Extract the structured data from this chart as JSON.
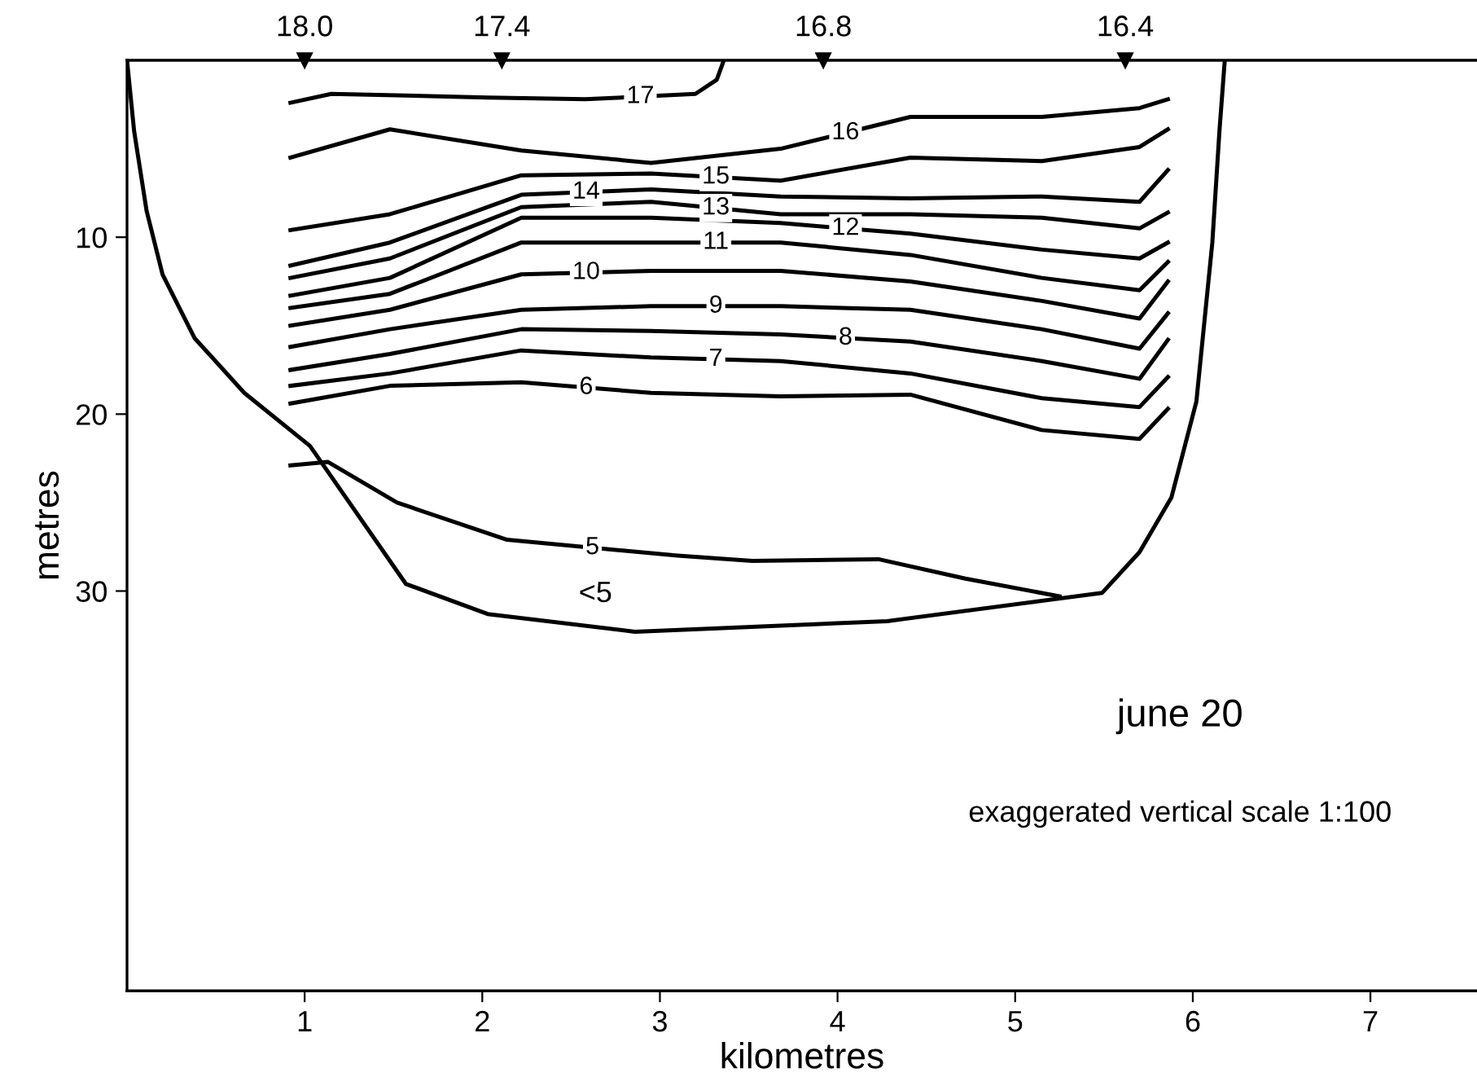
{
  "chart_data": {
    "type": "line",
    "xlabel": "kilometres",
    "ylabel": "metres",
    "xlim": [
      0,
      7.6
    ],
    "xticks": [
      1,
      2,
      3,
      4,
      5,
      6,
      7
    ],
    "ylim": [
      52.6,
      0
    ],
    "yticks": [
      10,
      20,
      30
    ],
    "grid": false,
    "legend": false,
    "marker": "none",
    "line_style": "solid",
    "series": [
      {
        "color": "#000000",
        "x": [
          0,
          0.04,
          0.11,
          0.2,
          0.38,
          0.66,
          1.03,
          1.57,
          2.03,
          2.86,
          4.28,
          5.49,
          5.7,
          5.88,
          6.02,
          6.11,
          6.15,
          6.18
        ],
        "values": [
          0,
          4.0,
          8.5,
          12.1,
          15.7,
          18.8,
          21.8,
          29.6,
          31.3,
          32.3,
          31.7,
          30.1,
          27.8,
          24.7,
          19.3,
          10.3,
          4.0,
          0
        ]
      },
      {
        "name": "17",
        "color": "#000000",
        "x": [
          0.92,
          1.15,
          2.03,
          2.58,
          3.2,
          3.32,
          3.36
        ],
        "values": [
          2.4,
          1.9,
          2.1,
          2.2,
          1.9,
          1.1,
          0
        ]
      },
      {
        "name": "16",
        "color": "#000000",
        "x": [
          0.92,
          1.48,
          2.22,
          2.95,
          3.68,
          4.41,
          5.15,
          5.7,
          5.86
        ],
        "values": [
          5.5,
          3.9,
          5.1,
          5.8,
          5.0,
          3.2,
          3.2,
          2.7,
          2.2
        ]
      },
      {
        "name": "15",
        "color": "#000000",
        "x": [
          0.92,
          1.48,
          2.22,
          2.95,
          3.68,
          4.41,
          5.15,
          5.7,
          5.86
        ],
        "values": [
          9.6,
          8.7,
          6.5,
          6.4,
          6.8,
          5.5,
          5.7,
          4.9,
          3.9
        ]
      },
      {
        "name": "14",
        "color": "#000000",
        "x": [
          0.92,
          1.48,
          2.22,
          2.95,
          3.68,
          4.41,
          5.15,
          5.7,
          5.86
        ],
        "values": [
          11.6,
          10.3,
          7.6,
          7.3,
          7.7,
          7.8,
          7.7,
          8.0,
          6.2
        ]
      },
      {
        "name": "13",
        "color": "#000000",
        "x": [
          0.92,
          1.48,
          2.22,
          2.95,
          3.68,
          4.41,
          5.15,
          5.7,
          5.86
        ],
        "values": [
          12.3,
          11.2,
          8.3,
          8.0,
          8.7,
          8.7,
          8.9,
          9.5,
          8.6
        ]
      },
      {
        "name": "12",
        "color": "#000000",
        "x": [
          0.92,
          1.48,
          2.22,
          2.95,
          3.68,
          4.41,
          5.15,
          5.7,
          5.86
        ],
        "values": [
          13.3,
          12.3,
          8.9,
          8.9,
          9.2,
          9.8,
          10.7,
          11.2,
          10.3
        ]
      },
      {
        "name": "11",
        "color": "#000000",
        "x": [
          0.92,
          1.48,
          2.22,
          2.95,
          3.68,
          4.41,
          5.15,
          5.7,
          5.86
        ],
        "values": [
          14.0,
          13.2,
          10.3,
          10.3,
          10.3,
          11.0,
          12.3,
          13.0,
          11.4
        ]
      },
      {
        "name": "10",
        "color": "#000000",
        "x": [
          0.92,
          1.48,
          2.22,
          2.95,
          3.68,
          4.41,
          5.15,
          5.7,
          5.86
        ],
        "values": [
          15.0,
          14.1,
          12.1,
          11.9,
          11.9,
          12.5,
          13.6,
          14.6,
          12.5
        ]
      },
      {
        "name": "9",
        "color": "#000000",
        "x": [
          0.92,
          1.48,
          2.22,
          2.95,
          3.68,
          4.41,
          5.15,
          5.7,
          5.86
        ],
        "values": [
          16.2,
          15.2,
          14.1,
          13.9,
          13.9,
          14.1,
          15.2,
          16.3,
          14.3
        ]
      },
      {
        "name": "8",
        "color": "#000000",
        "x": [
          0.92,
          1.48,
          2.22,
          2.95,
          3.68,
          4.41,
          5.15,
          5.7,
          5.86
        ],
        "values": [
          17.5,
          16.6,
          15.2,
          15.3,
          15.5,
          15.9,
          17.0,
          18.0,
          15.8
        ]
      },
      {
        "name": "7",
        "color": "#000000",
        "x": [
          0.92,
          1.48,
          2.22,
          2.95,
          3.68,
          4.41,
          5.15,
          5.7,
          5.86
        ],
        "values": [
          18.4,
          17.7,
          16.4,
          16.8,
          17.0,
          17.7,
          19.1,
          19.6,
          17.9
        ]
      },
      {
        "name": "6",
        "color": "#000000",
        "x": [
          0.92,
          1.48,
          2.22,
          2.95,
          3.68,
          4.41,
          5.15,
          5.7,
          5.86
        ],
        "values": [
          19.4,
          18.4,
          18.2,
          18.8,
          19.0,
          18.9,
          20.9,
          21.4,
          19.7
        ]
      },
      {
        "name": "5",
        "color": "#000000",
        "x": [
          0.92,
          1.13,
          1.52,
          2.14,
          3.1,
          3.52,
          4.23,
          4.72,
          5.25
        ],
        "values": [
          22.9,
          22.7,
          25.0,
          27.1,
          28.0,
          28.3,
          28.2,
          29.3,
          30.3
        ]
      }
    ],
    "annotations": [
      {
        "text": "18.0",
        "x": 1.0,
        "y": 0
      },
      {
        "text": "17.4",
        "x": 2.11,
        "y": 0
      },
      {
        "text": "16.8",
        "x": 3.92,
        "y": 0
      },
      {
        "text": "16.4",
        "x": 5.62,
        "y": 0
      },
      "<5",
      "june 20",
      "exaggerated vertical scale 1:100"
    ]
  }
}
